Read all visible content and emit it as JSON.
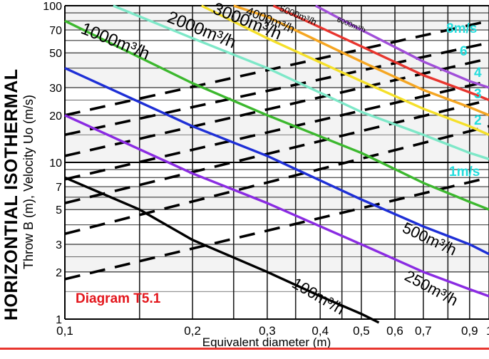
{
  "title_main": "HORIZONTIAL ISOTHERMAL",
  "title_sub": "Throw B (m), Velocity Uo (m/s)",
  "diagram_label": "Diagram T5.1",
  "chart_data": {
    "type": "line",
    "xscale": "log",
    "yscale": "log",
    "xlim": [
      0.1,
      1.0
    ],
    "ylim": [
      1,
      100
    ],
    "grid": true,
    "xlabel": "Equivalent diameter (m)",
    "ylabel": "Throw B (m), Velocity Uo (m/s)",
    "xticks": [
      0.1,
      0.2,
      0.3,
      0.4,
      0.5,
      0.6,
      0.7,
      0.9,
      1.0
    ],
    "xtick_labels": [
      "0,1",
      "0,2",
      "0,3",
      "0,4",
      "0,5",
      "0,6",
      "0,7",
      "0,9",
      "1"
    ],
    "yticks": [
      1,
      2,
      3,
      5,
      7,
      10,
      20,
      30,
      50,
      70,
      100
    ],
    "ytick_labels": [
      "1",
      "2",
      "3",
      "5",
      "7",
      "10",
      "20",
      "30",
      "50",
      "70",
      "100"
    ],
    "series": [
      {
        "name": "100m³/h",
        "color": "#000000",
        "label_pos": "lower-middle",
        "x": [
          0.1,
          0.15,
          0.2,
          0.3,
          0.4,
          0.5,
          0.55
        ],
        "y": [
          8.0,
          5.0,
          3.2,
          2.0,
          1.4,
          1.08,
          0.95
        ]
      },
      {
        "name": "250m³/h",
        "color": "#8a2be2",
        "label_pos": "lower-right",
        "x": [
          0.1,
          0.2,
          0.3,
          0.5,
          0.7,
          0.9,
          1.0
        ],
        "y": [
          20.0,
          8.5,
          5.5,
          3.0,
          2.0,
          1.55,
          1.4
        ]
      },
      {
        "name": "500m³/h",
        "color": "#1e2fd6",
        "label_pos": "lower-right",
        "x": [
          0.1,
          0.2,
          0.3,
          0.5,
          0.7,
          0.9,
          1.0
        ],
        "y": [
          40.0,
          17.0,
          11.0,
          5.8,
          3.9,
          3.0,
          2.6
        ]
      },
      {
        "name": "1000m³/h",
        "color": "#3cb82e",
        "label_pos": "upper-left",
        "x": [
          0.1,
          0.2,
          0.3,
          0.5,
          0.7,
          0.9,
          1.0
        ],
        "y": [
          80.0,
          32.0,
          20.0,
          11.5,
          7.4,
          5.6,
          5.0
        ]
      },
      {
        "name": "2000m³/h",
        "color": "#7ee8c8",
        "label_pos": "upper-left",
        "x": [
          0.13,
          0.2,
          0.3,
          0.5,
          0.7,
          0.9,
          1.0
        ],
        "y": [
          100.0,
          62.0,
          40.0,
          21.0,
          15.0,
          11.5,
          10.5
        ]
      },
      {
        "name": "3000m³/h",
        "color": "#f5e02a",
        "label_pos": "upper-left",
        "x": [
          0.21,
          0.3,
          0.5,
          0.7,
          0.9,
          1.0
        ],
        "y": [
          100.0,
          62.0,
          33.0,
          22.0,
          17.0,
          15.0
        ]
      },
      {
        "name": "4000m³/h",
        "color": "#f5a623",
        "label_pos": "upper-middle",
        "x": [
          0.25,
          0.3,
          0.5,
          0.7,
          0.9,
          1.0
        ],
        "y": [
          100.0,
          85.0,
          44.0,
          29.0,
          22.5,
          20.0
        ]
      },
      {
        "name": "5000m³/h",
        "color": "#e8352e",
        "label_pos": "upper-middle",
        "x": [
          0.31,
          0.5,
          0.7,
          0.9,
          1.0
        ],
        "y": [
          100.0,
          55.0,
          36.0,
          28.0,
          25.0
        ]
      },
      {
        "name": "6000m³/h",
        "color": "#a14fd9",
        "label_pos": "upper-right",
        "x": [
          0.39,
          0.5,
          0.7,
          0.9,
          1.0
        ],
        "y": [
          100.0,
          70.0,
          44.0,
          33.0,
          30.0
        ]
      }
    ],
    "velocity_lines": [
      {
        "name": "1m/s",
        "x": [
          0.1,
          1.0
        ],
        "y": [
          1.8,
          8.0
        ]
      },
      {
        "name": "2",
        "x": [
          0.1,
          1.0
        ],
        "y": [
          3.5,
          17.0
        ]
      },
      {
        "name": "3",
        "x": [
          0.1,
          1.0
        ],
        "y": [
          5.5,
          25.0
        ]
      },
      {
        "name": "4",
        "x": [
          0.1,
          1.0
        ],
        "y": [
          7.8,
          33.0
        ]
      },
      {
        "name": "",
        "x": [
          0.1,
          1.0
        ],
        "y": [
          11.0,
          46.0
        ]
      },
      {
        "name": "6",
        "x": [
          0.1,
          1.0
        ],
        "y": [
          15.0,
          58.0
        ]
      },
      {
        "name": "8m/s",
        "x": [
          0.1,
          1.0
        ],
        "y": [
          20.0,
          80.0
        ]
      }
    ],
    "velocity_label_color": "#22dddd"
  }
}
